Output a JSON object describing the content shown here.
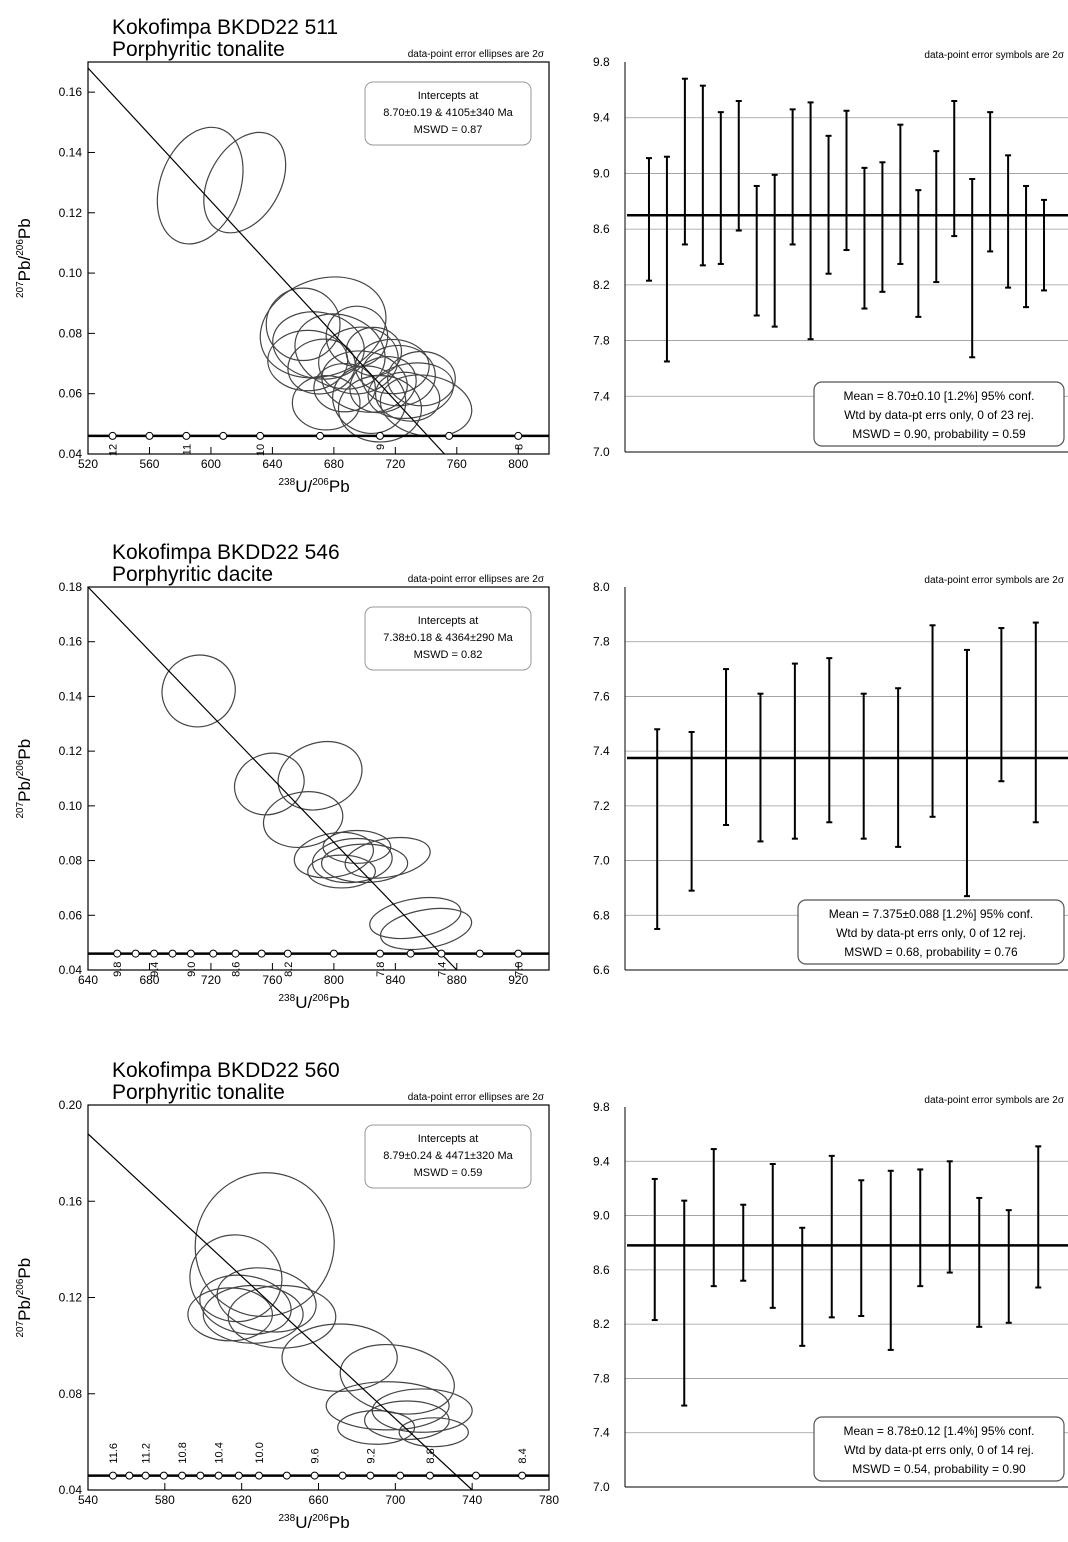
{
  "panels": [
    {
      "sample_title": "Kokofimpa BKDD22 511",
      "lithology": "Porphyritic tonalite",
      "concordia": {
        "note": "data-point error ellipses are 2σ",
        "intercepts_label": "Intercepts at",
        "intercepts_values": "8.70±0.19 & 4105±340 Ma",
        "mswd": "MSWD = 0.87"
      },
      "weighted_mean": {
        "note": "data-point error symbols are 2σ",
        "lines": [
          "Mean = 8.70±0.10  [1.2%]  95% conf.",
          "Wtd by data-pt errs only, 0 of 23 rej.",
          "MSWD = 0.90, probability = 0.59"
        ]
      }
    },
    {
      "sample_title": "Kokofimpa BKDD22 546",
      "lithology": "Porphyritic dacite",
      "concordia": {
        "note": "data-point error ellipses are 2σ",
        "intercepts_label": "Intercepts at",
        "intercepts_values": "7.38±0.18 & 4364±290 Ma",
        "mswd": "MSWD = 0.82"
      },
      "weighted_mean": {
        "note": "data-point error symbols are 2σ",
        "lines": [
          "Mean = 7.375±0.088  [1.2%]  95% conf.",
          "Wtd by data-pt errs only, 0 of 12 rej.",
          "MSWD = 0.68, probability = 0.76"
        ]
      }
    },
    {
      "sample_title": "Kokofimpa BKDD22 560",
      "lithology": "Porphyritic tonalite",
      "concordia": {
        "note": "data-point error ellipses are 2σ",
        "intercepts_label": "Intercepts at",
        "intercepts_values": "8.79±0.24 & 4471±320 Ma",
        "mswd": "MSWD = 0.59"
      },
      "weighted_mean": {
        "note": "data-point error symbols are 2σ",
        "lines": [
          "Mean = 8.78±0.12  [1.4%]  95% conf.",
          "Wtd by data-pt errs only, 0 of 14 rej.",
          "MSWD = 0.54, probability = 0.90"
        ]
      }
    }
  ],
  "chart_data": [
    {
      "type": "scatter",
      "xlabel": "238U/206Pb",
      "ylabel": "207Pb/206Pb",
      "xlim": [
        520,
        820
      ],
      "ylim": [
        0.04,
        0.17
      ],
      "xticks": [
        520,
        560,
        600,
        640,
        680,
        720,
        760,
        800
      ],
      "yticks": [
        0.04,
        0.06,
        0.08,
        0.1,
        0.12,
        0.14,
        0.16
      ],
      "yticks_text": [
        "0.04",
        "0.06",
        "0.08",
        "0.10",
        "0.12",
        "0.14",
        "0.16"
      ],
      "regression": {
        "y_intercept": 0.168,
        "x_at_0_04": 752
      },
      "concordia_ages": [
        12,
        11,
        10,
        9,
        8
      ],
      "concordia_age_x": [
        536,
        584,
        632,
        710,
        800
      ],
      "ellipses": [
        {
          "x": 593,
          "y": 0.129,
          "rx": 26,
          "ry": 0.02,
          "rot": 20
        },
        {
          "x": 622,
          "y": 0.13,
          "rx": 23,
          "ry": 0.018,
          "rot": 30
        },
        {
          "x": 673,
          "y": 0.082,
          "rx": 42,
          "ry": 0.016,
          "rot": -20
        },
        {
          "x": 660,
          "y": 0.083,
          "rx": 24,
          "ry": 0.012,
          "rot": 0
        },
        {
          "x": 663,
          "y": 0.071,
          "rx": 26,
          "ry": 0.01,
          "rot": 0
        },
        {
          "x": 670,
          "y": 0.076,
          "rx": 30,
          "ry": 0.011,
          "rot": 10
        },
        {
          "x": 672,
          "y": 0.069,
          "rx": 22,
          "ry": 0.009,
          "rot": -10
        },
        {
          "x": 684,
          "y": 0.074,
          "rx": 30,
          "ry": 0.012,
          "rot": 20
        },
        {
          "x": 696,
          "y": 0.071,
          "rx": 26,
          "ry": 0.011,
          "rot": -10
        },
        {
          "x": 700,
          "y": 0.064,
          "rx": 28,
          "ry": 0.01,
          "rot": 10
        },
        {
          "x": 703,
          "y": 0.058,
          "rx": 24,
          "ry": 0.011,
          "rot": 20
        },
        {
          "x": 710,
          "y": 0.055,
          "rx": 27,
          "ry": 0.011,
          "rot": 0
        },
        {
          "x": 712,
          "y": 0.063,
          "rx": 22,
          "ry": 0.009,
          "rot": -20
        },
        {
          "x": 722,
          "y": 0.066,
          "rx": 24,
          "ry": 0.01,
          "rot": 0
        },
        {
          "x": 728,
          "y": 0.059,
          "rx": 21,
          "ry": 0.008,
          "rot": 10
        },
        {
          "x": 740,
          "y": 0.056,
          "rx": 30,
          "ry": 0.01,
          "rot": 10
        },
        {
          "x": 730,
          "y": 0.061,
          "rx": 28,
          "ry": 0.009,
          "rot": -10
        },
        {
          "x": 687,
          "y": 0.062,
          "rx": 20,
          "ry": 0.008,
          "rot": 0
        },
        {
          "x": 718,
          "y": 0.069,
          "rx": 24,
          "ry": 0.009,
          "rot": 0
        },
        {
          "x": 695,
          "y": 0.079,
          "rx": 20,
          "ry": 0.01,
          "rot": 10
        },
        {
          "x": 675,
          "y": 0.057,
          "rx": 22,
          "ry": 0.009,
          "rot": 0
        },
        {
          "x": 737,
          "y": 0.065,
          "rx": 22,
          "ry": 0.009,
          "rot": 0
        },
        {
          "x": 706,
          "y": 0.074,
          "rx": 18,
          "ry": 0.008,
          "rot": 0
        }
      ]
    },
    {
      "type": "bar",
      "ylim": [
        7.0,
        9.8
      ],
      "yticks": [
        7.0,
        7.4,
        7.8,
        8.2,
        8.6,
        9.0,
        9.4,
        9.8
      ],
      "yticks_text": [
        "7.0",
        "7.4",
        "7.8",
        "8.2",
        "8.6",
        "9.0",
        "9.4",
        "9.8"
      ],
      "mean": 8.7,
      "bars": [
        [
          8.23,
          9.11
        ],
        [
          7.65,
          9.12
        ],
        [
          8.49,
          9.68
        ],
        [
          8.34,
          9.63
        ],
        [
          8.35,
          9.44
        ],
        [
          8.59,
          9.52
        ],
        [
          7.98,
          8.91
        ],
        [
          7.9,
          8.99
        ],
        [
          8.49,
          9.46
        ],
        [
          7.81,
          9.51
        ],
        [
          8.28,
          9.27
        ],
        [
          8.45,
          9.45
        ],
        [
          8.03,
          9.04
        ],
        [
          8.15,
          9.08
        ],
        [
          8.35,
          9.35
        ],
        [
          7.97,
          8.88
        ],
        [
          8.22,
          9.16
        ],
        [
          8.55,
          9.52
        ],
        [
          7.68,
          8.96
        ],
        [
          8.44,
          9.44
        ],
        [
          8.18,
          9.13
        ],
        [
          8.04,
          8.91
        ],
        [
          8.16,
          8.81
        ]
      ]
    },
    {
      "type": "scatter",
      "xlabel": "238U/206Pb",
      "ylabel": "207Pb/206Pb",
      "xlim": [
        640,
        940
      ],
      "ylim": [
        0.04,
        0.18
      ],
      "xticks": [
        640,
        680,
        720,
        760,
        800,
        840,
        880,
        920
      ],
      "yticks": [
        0.04,
        0.06,
        0.08,
        0.1,
        0.12,
        0.14,
        0.16,
        0.18
      ],
      "yticks_text": [
        "0.04",
        "0.06",
        "0.08",
        "0.10",
        "0.12",
        "0.14",
        "0.16",
        "0.18"
      ],
      "regression": {
        "y_intercept": 0.18,
        "x_at_0_04": 880
      },
      "concordia_ages": [
        9.8,
        9.4,
        9.0,
        8.6,
        8.2,
        7.8,
        7.4,
        7.0
      ],
      "concordia_age_x": [
        659,
        683,
        707,
        736,
        770,
        830,
        870,
        920
      ],
      "ellipses": [
        {
          "x": 712,
          "y": 0.142,
          "rx": 24,
          "ry": 0.013,
          "rot": -30
        },
        {
          "x": 758,
          "y": 0.108,
          "rx": 23,
          "ry": 0.011,
          "rot": -20
        },
        {
          "x": 791,
          "y": 0.111,
          "rx": 28,
          "ry": 0.012,
          "rot": -20
        },
        {
          "x": 780,
          "y": 0.095,
          "rx": 26,
          "ry": 0.01,
          "rot": -10
        },
        {
          "x": 800,
          "y": 0.082,
          "rx": 26,
          "ry": 0.008,
          "rot": -10
        },
        {
          "x": 812,
          "y": 0.08,
          "rx": 26,
          "ry": 0.008,
          "rot": -5
        },
        {
          "x": 820,
          "y": 0.079,
          "rx": 28,
          "ry": 0.007,
          "rot": 0
        },
        {
          "x": 835,
          "y": 0.081,
          "rx": 28,
          "ry": 0.007,
          "rot": -10
        },
        {
          "x": 805,
          "y": 0.076,
          "rx": 22,
          "ry": 0.006,
          "rot": 0
        },
        {
          "x": 853,
          "y": 0.059,
          "rx": 30,
          "ry": 0.007,
          "rot": -10
        },
        {
          "x": 860,
          "y": 0.055,
          "rx": 30,
          "ry": 0.007,
          "rot": -10
        },
        {
          "x": 815,
          "y": 0.085,
          "rx": 22,
          "ry": 0.006,
          "rot": 0
        }
      ]
    },
    {
      "type": "bar",
      "ylim": [
        6.6,
        8.0
      ],
      "yticks": [
        6.6,
        6.8,
        7.0,
        7.2,
        7.4,
        7.6,
        7.8,
        8.0
      ],
      "yticks_text": [
        "6.6",
        "6.8",
        "7.0",
        "7.2",
        "7.4",
        "7.6",
        "7.8",
        "8.0"
      ],
      "mean": 7.375,
      "bars": [
        [
          6.75,
          7.48
        ],
        [
          6.89,
          7.47
        ],
        [
          7.13,
          7.7
        ],
        [
          7.07,
          7.61
        ],
        [
          7.08,
          7.72
        ],
        [
          7.14,
          7.74
        ],
        [
          7.08,
          7.61
        ],
        [
          7.05,
          7.63
        ],
        [
          7.16,
          7.86
        ],
        [
          6.87,
          7.77
        ],
        [
          7.29,
          7.85
        ],
        [
          7.14,
          7.87
        ]
      ]
    },
    {
      "type": "scatter",
      "xlabel": "238U/206Pb",
      "ylabel": "207Pb/206Pb",
      "xlim": [
        540,
        780
      ],
      "ylim": [
        0.04,
        0.2
      ],
      "xticks": [
        540,
        580,
        620,
        660,
        700,
        740,
        780
      ],
      "yticks": [
        0.04,
        0.08,
        0.12,
        0.16,
        0.2
      ],
      "yticks_text": [
        "0.04",
        "0.08",
        "0.12",
        "0.16",
        "0.20"
      ],
      "regression": {
        "y_intercept": 0.188,
        "x_at_0_04": 740
      },
      "concordia_ages": [
        11.6,
        11.2,
        10.8,
        10.4,
        10.0,
        9.6,
        9.2,
        8.8,
        8.4
      ],
      "concordia_age_x": [
        553,
        570,
        589,
        608,
        629,
        658,
        687,
        718,
        766
      ],
      "ellipses": [
        {
          "x": 632,
          "y": 0.142,
          "rx": 36,
          "ry": 0.03,
          "rot": 20
        },
        {
          "x": 617,
          "y": 0.128,
          "rx": 24,
          "ry": 0.018,
          "rot": 10
        },
        {
          "x": 614,
          "y": 0.113,
          "rx": 22,
          "ry": 0.011,
          "rot": 0
        },
        {
          "x": 622,
          "y": 0.117,
          "rx": 24,
          "ry": 0.012,
          "rot": 10
        },
        {
          "x": 626,
          "y": 0.113,
          "rx": 26,
          "ry": 0.012,
          "rot": 0
        },
        {
          "x": 633,
          "y": 0.119,
          "rx": 26,
          "ry": 0.013,
          "rot": 10
        },
        {
          "x": 641,
          "y": 0.112,
          "rx": 28,
          "ry": 0.013,
          "rot": 0
        },
        {
          "x": 671,
          "y": 0.095,
          "rx": 30,
          "ry": 0.014,
          "rot": 0
        },
        {
          "x": 701,
          "y": 0.086,
          "rx": 30,
          "ry": 0.014,
          "rot": 10
        },
        {
          "x": 696,
          "y": 0.075,
          "rx": 32,
          "ry": 0.01,
          "rot": 0
        },
        {
          "x": 714,
          "y": 0.073,
          "rx": 26,
          "ry": 0.009,
          "rot": 0
        },
        {
          "x": 706,
          "y": 0.069,
          "rx": 22,
          "ry": 0.008,
          "rot": 0
        },
        {
          "x": 690,
          "y": 0.066,
          "rx": 20,
          "ry": 0.007,
          "rot": 0
        },
        {
          "x": 720,
          "y": 0.064,
          "rx": 18,
          "ry": 0.006,
          "rot": 0
        }
      ]
    },
    {
      "type": "bar",
      "ylim": [
        7.0,
        9.8
      ],
      "yticks": [
        7.0,
        7.4,
        7.8,
        8.2,
        8.6,
        9.0,
        9.4,
        9.8
      ],
      "yticks_text": [
        "7.0",
        "7.4",
        "7.8",
        "8.2",
        "8.6",
        "9.0",
        "9.4",
        "9.8"
      ],
      "mean": 8.78,
      "bars": [
        [
          8.23,
          9.27
        ],
        [
          7.6,
          9.11
        ],
        [
          8.48,
          9.49
        ],
        [
          8.52,
          9.08
        ],
        [
          8.32,
          9.38
        ],
        [
          8.04,
          8.91
        ],
        [
          8.25,
          9.44
        ],
        [
          8.26,
          9.26
        ],
        [
          8.01,
          9.33
        ],
        [
          8.48,
          9.34
        ],
        [
          8.58,
          9.4
        ],
        [
          8.18,
          9.13
        ],
        [
          8.21,
          9.04
        ],
        [
          8.47,
          9.51
        ]
      ]
    }
  ]
}
